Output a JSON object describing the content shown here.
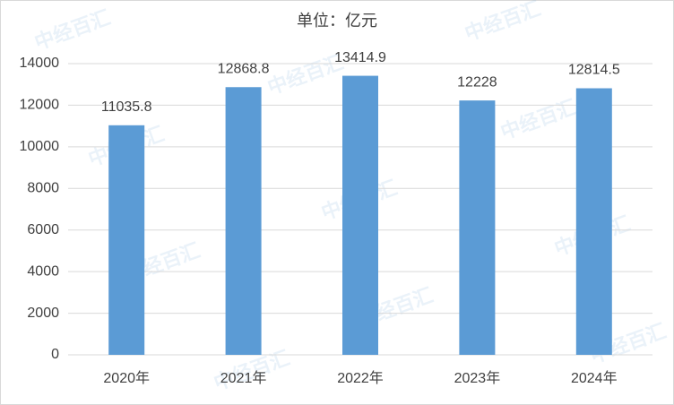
{
  "chart_data": {
    "type": "bar",
    "title": "单位：亿元",
    "categories": [
      "2020年",
      "2021年",
      "2022年",
      "2023年",
      "2024年"
    ],
    "values": [
      11035.8,
      12868.8,
      13414.9,
      12228,
      12814.5
    ],
    "color": "#5b9bd5",
    "ylim": [
      0,
      14000
    ],
    "yticks": [
      0,
      2000,
      4000,
      6000,
      8000,
      10000,
      12000,
      14000
    ],
    "grid": true,
    "watermark": "中经百汇"
  }
}
